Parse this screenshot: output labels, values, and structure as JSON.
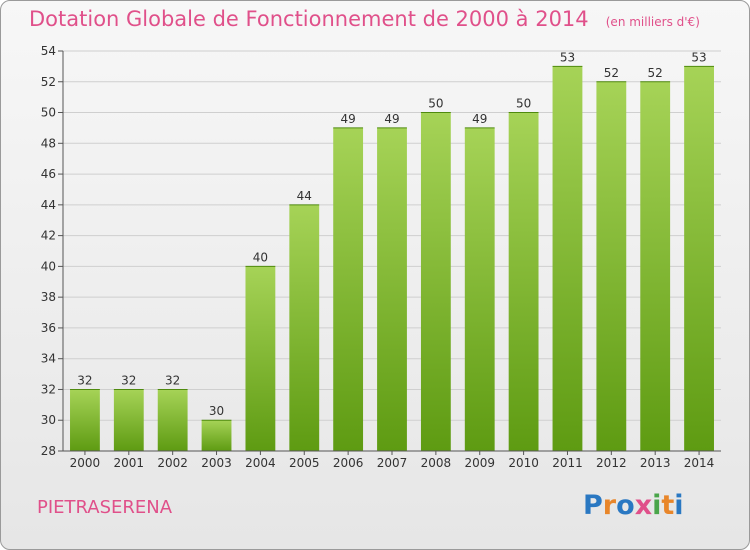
{
  "title": "Dotation Globale de Fonctionnement de 2000 à 2014",
  "unit_note": "(en milliers d'€)",
  "commune": "PIETRASERENA",
  "logo": {
    "text": "Proxiti",
    "colors": [
      "#2a78c2",
      "#e8862a",
      "#2a78c2",
      "#e0508a",
      "#4aa54a",
      "#e8862a",
      "#2a78c2"
    ]
  },
  "colors": {
    "title": "#e0508a",
    "bar_top": "#a6d357",
    "bar_bottom": "#5e9b12",
    "grid": "#cfcfcf"
  },
  "chart_data": {
    "type": "bar",
    "categories": [
      "2000",
      "2001",
      "2002",
      "2003",
      "2004",
      "2005",
      "2006",
      "2007",
      "2008",
      "2009",
      "2010",
      "2011",
      "2012",
      "2013",
      "2014"
    ],
    "values": [
      32,
      32,
      32,
      30,
      40,
      44,
      49,
      49,
      50,
      49,
      50,
      53,
      52,
      52,
      53
    ],
    "ylim": [
      28,
      54
    ],
    "yticks": [
      28,
      30,
      32,
      34,
      36,
      38,
      40,
      42,
      44,
      46,
      48,
      50,
      52,
      54
    ],
    "grid": true,
    "title": "Dotation Globale de Fonctionnement de 2000 à 2014",
    "xlabel": "",
    "ylabel": ""
  }
}
